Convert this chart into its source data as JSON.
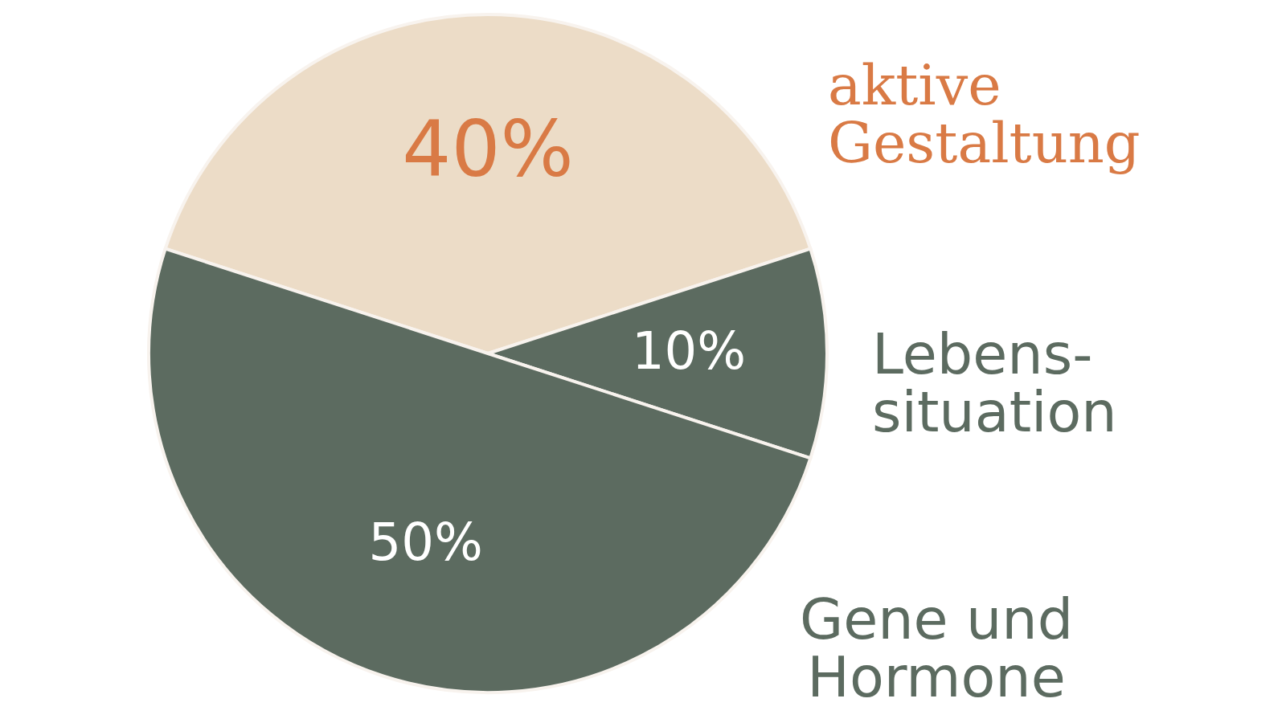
{
  "chart_data": {
    "type": "pie",
    "categories": [
      "aktive\nGestaltung",
      "Lebens-\nsituation",
      "Gene und\nHormone"
    ],
    "values": [
      40,
      10,
      50
    ],
    "colors": [
      "#ecdcc7",
      "#5c6b60",
      "#5c6b60"
    ],
    "value_labels": [
      "40%",
      "10%",
      "50%"
    ]
  }
}
